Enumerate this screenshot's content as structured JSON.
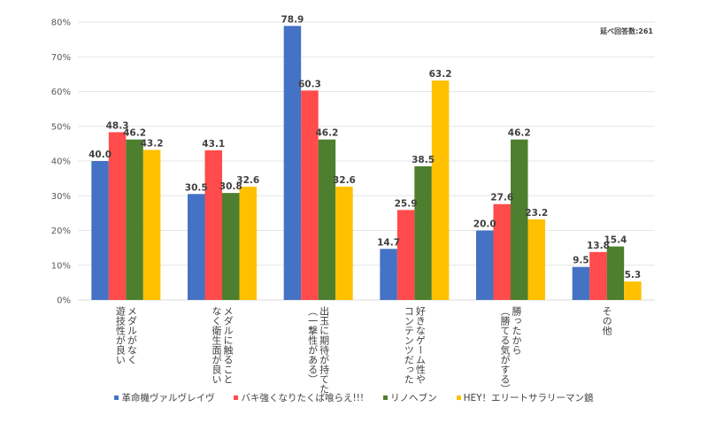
{
  "chart_data": {
    "type": "bar",
    "title": "",
    "xlabel": "",
    "ylabel": "",
    "ylim": [
      0,
      80
    ],
    "y_ticks": [
      "0%",
      "10%",
      "20%",
      "30%",
      "40%",
      "50%",
      "60%",
      "70%",
      "80%"
    ],
    "grid": true,
    "legend_position": "bottom",
    "annotation": "延べ回答数:261",
    "categories": [
      "メダルがなく\n遊技性が良い",
      "メダルに触ること\nなく衛生面が良い",
      "出玉に期待が持てた\n（一撃性がある）",
      "好きなゲーム性や\nコンテンツだった",
      "勝ったから\n（勝てる気がする）",
      "その他"
    ],
    "series": [
      {
        "name": "革命機ヴァルヴレイヴ",
        "color": "#4472C4",
        "values": [
          40.0,
          30.5,
          78.9,
          14.7,
          20.0,
          9.5
        ]
      },
      {
        "name": "バキ強くなりたくば喰らえ!!!",
        "color": "#FF4B4B",
        "values": [
          48.3,
          43.1,
          60.3,
          25.9,
          27.6,
          13.8
        ]
      },
      {
        "name": "リノヘブン",
        "color": "#4E7F2E",
        "values": [
          46.2,
          30.8,
          46.2,
          38.5,
          46.2,
          15.4
        ]
      },
      {
        "name": "HEY！エリートサラリーマン鏡",
        "color": "#FFC000",
        "values": [
          43.2,
          32.6,
          32.6,
          63.2,
          23.2,
          5.3
        ]
      }
    ]
  }
}
